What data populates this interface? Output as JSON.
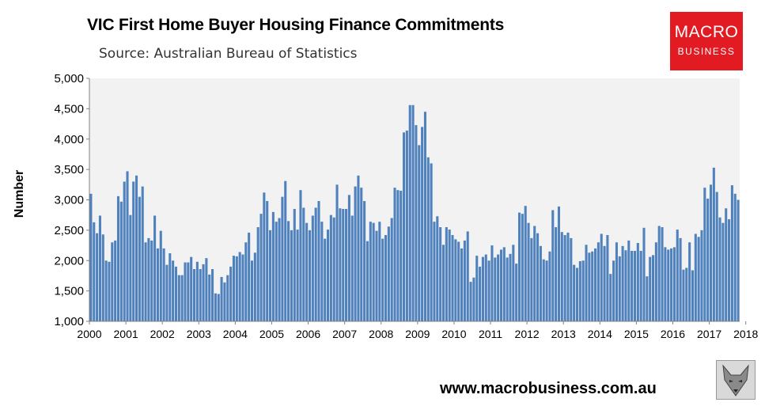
{
  "header": {
    "title": "VIC First Home Buyer Housing Finance Commitments",
    "subtitle": "Source: Australian Bureau of Statistics"
  },
  "logo": {
    "line1": "MACRO",
    "line2": "BUSINESS"
  },
  "footer": {
    "url": "www.macrobusiness.com.au"
  },
  "chart_data": {
    "type": "bar",
    "ylabel": "Number",
    "ylim": [
      1000,
      5000
    ],
    "yticks": [
      "1,000",
      "1,500",
      "2,000",
      "2,500",
      "3,000",
      "3,500",
      "4,000",
      "4,500",
      "5,000"
    ],
    "xticks": [
      "2000",
      "2001",
      "2002",
      "2003",
      "2004",
      "2005",
      "2006",
      "2007",
      "2008",
      "2009",
      "2010",
      "2011",
      "2012",
      "2013",
      "2014",
      "2015",
      "2016",
      "2017",
      "2018"
    ],
    "x_start": "2000-01",
    "frequency": "monthly",
    "grid": false,
    "bar_color": "#4f81bd",
    "plot_background": "#f2f2f2",
    "values": [
      3100,
      2630,
      2450,
      2740,
      2430,
      2000,
      1980,
      2300,
      2330,
      3060,
      2970,
      3300,
      3470,
      2750,
      3300,
      3400,
      3050,
      3220,
      2300,
      2370,
      2330,
      2740,
      2200,
      2490,
      2200,
      1930,
      2120,
      2000,
      1900,
      1760,
      1760,
      1970,
      1970,
      2060,
      1860,
      1980,
      1860,
      1940,
      2040,
      1770,
      1860,
      1460,
      1450,
      1730,
      1640,
      1760,
      1900,
      2080,
      2070,
      2140,
      2100,
      2300,
      2460,
      2000,
      2130,
      2550,
      2770,
      3120,
      2980,
      2500,
      2800,
      2640,
      2700,
      3050,
      3310,
      2650,
      2500,
      2850,
      2510,
      3160,
      2870,
      2620,
      2500,
      2740,
      2870,
      2980,
      2640,
      2360,
      2510,
      2750,
      2710,
      3250,
      2860,
      2850,
      2850,
      3080,
      2740,
      3220,
      3400,
      3200,
      2980,
      2320,
      2640,
      2620,
      2490,
      2640,
      2360,
      2420,
      2560,
      2700,
      3200,
      3160,
      3150,
      4110,
      4140,
      4560,
      4560,
      4230,
      3900,
      4200,
      4450,
      3700,
      3600,
      2640,
      2730,
      2550,
      2260,
      2550,
      2510,
      2420,
      2350,
      2310,
      2200,
      2330,
      2480,
      1650,
      1720,
      2080,
      1900,
      2060,
      2100,
      2000,
      2250,
      2050,
      2100,
      2180,
      2220,
      2050,
      2110,
      2260,
      1950,
      2790,
      2770,
      2900,
      2620,
      2370,
      2570,
      2450,
      2240,
      2020,
      2000,
      2150,
      2830,
      2550,
      2890,
      2470,
      2420,
      2460,
      2370,
      1930,
      1880,
      1990,
      2000,
      2260,
      2130,
      2150,
      2200,
      2300,
      2440,
      2240,
      2420,
      1780,
      2000,
      2300,
      2070,
      2240,
      2170,
      2330,
      2160,
      2160,
      2290,
      2160,
      2540,
      1740,
      2060,
      2090,
      2300,
      2570,
      2550,
      2220,
      2180,
      2200,
      2220,
      2510,
      2370,
      1850,
      1880,
      2300,
      1840,
      2440,
      2390,
      2500,
      3200,
      3020,
      3250,
      3530,
      3130,
      2710,
      2620,
      2860,
      2680,
      3240,
      3100,
      3000
    ]
  }
}
